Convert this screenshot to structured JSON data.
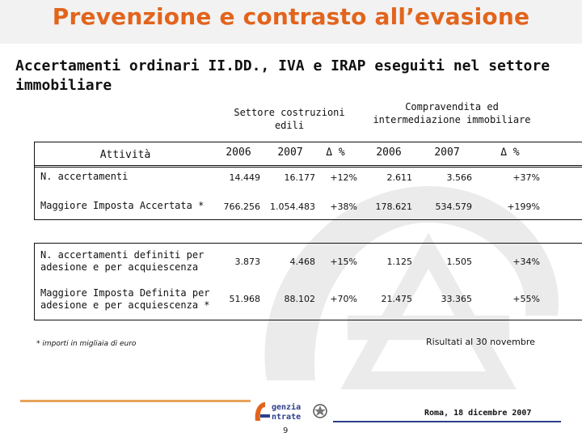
{
  "title": "Prevenzione e contrasto all’evasione",
  "subtitle": "Accertamenti ordinari II.DD., IVA e IRAP eseguiti nel settore immobiliare",
  "groups": {
    "left": "Settore costruzioni edili",
    "right": "Compravendita ed intermediazione immobiliare"
  },
  "activity_label": "Attività",
  "years": [
    "2006",
    "2007",
    "Δ %",
    "2006",
    "2007",
    "Δ %"
  ],
  "rows": [
    {
      "label": "N. accertamenti",
      "values": [
        "14.449",
        "16.177",
        "+12%",
        "2.611",
        "3.566",
        "+37%"
      ]
    },
    {
      "label": "Maggiore Imposta Accertata *",
      "values": [
        "766.256",
        "1.054.483",
        "+38%",
        "178.621",
        "534.579",
        "+199%"
      ]
    },
    {
      "label": "N. accertamenti definiti per adesione e per acquiescenza",
      "values": [
        "3.873",
        "4.468",
        "+15%",
        "1.125",
        "1.505",
        "+34%"
      ]
    },
    {
      "label": "Maggiore Imposta Definita per adesione e per acquiescenza *",
      "values": [
        "51.968",
        "88.102",
        "+70%",
        "21.475",
        "33.365",
        "+55%"
      ]
    }
  ],
  "note": "* importi in migliaia di euro",
  "result": "Risultati al 30 novembre",
  "logo": {
    "line1": "genzia",
    "line2": "ntrate"
  },
  "date": "Roma, 18 dicembre 2007",
  "page_number": "9",
  "colors": {
    "title": "#e2641c",
    "footer_orange": "#e8a25c",
    "footer_blue": "#2c3f8c"
  }
}
